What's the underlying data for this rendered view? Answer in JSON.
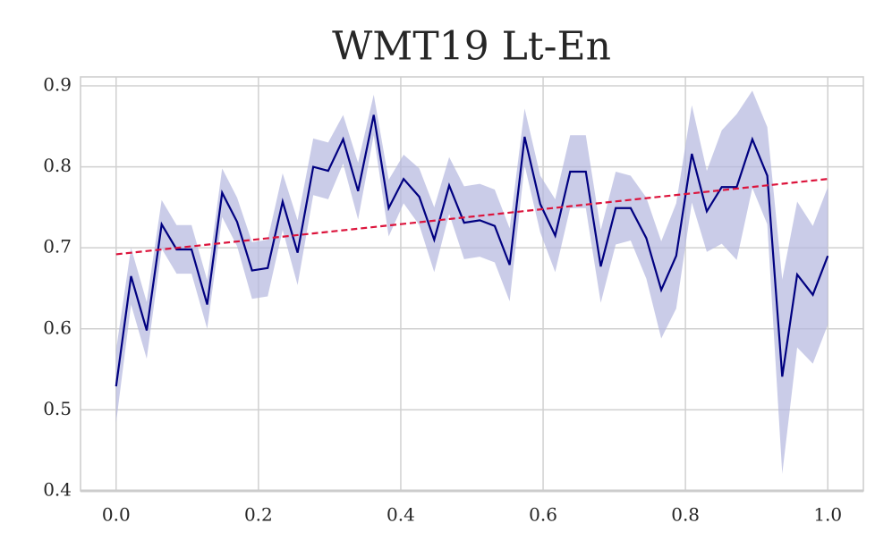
{
  "chart_data": {
    "type": "line",
    "title": "WMT19 Lt-En",
    "x": [
      0,
      0.021,
      0.043,
      0.064,
      0.085,
      0.106,
      0.128,
      0.149,
      0.17,
      0.191,
      0.213,
      0.234,
      0.255,
      0.277,
      0.298,
      0.319,
      0.34,
      0.362,
      0.383,
      0.404,
      0.426,
      0.447,
      0.468,
      0.489,
      0.511,
      0.532,
      0.553,
      0.574,
      0.596,
      0.617,
      0.638,
      0.66,
      0.681,
      0.702,
      0.723,
      0.745,
      0.766,
      0.787,
      0.809,
      0.83,
      0.851,
      0.872,
      0.894,
      0.915,
      0.936,
      0.957,
      0.979,
      1.0
    ],
    "series": [
      {
        "color": "#000080",
        "band_color": "#b3b6de",
        "values": [
          0.529,
          0.665,
          0.598,
          0.729,
          0.698,
          0.698,
          0.63,
          0.768,
          0.732,
          0.672,
          0.675,
          0.757,
          0.694,
          0.8,
          0.795,
          0.834,
          0.77,
          0.864,
          0.749,
          0.785,
          0.763,
          0.71,
          0.777,
          0.731,
          0.734,
          0.727,
          0.679,
          0.837,
          0.754,
          0.715,
          0.794,
          0.794,
          0.677,
          0.749,
          0.749,
          0.712,
          0.648,
          0.69,
          0.816,
          0.745,
          0.775,
          0.775,
          0.834,
          0.789,
          0.541,
          0.667,
          0.642,
          0.69
        ],
        "lower": [
          0.484,
          0.63,
          0.563,
          0.699,
          0.668,
          0.668,
          0.6,
          0.738,
          0.702,
          0.637,
          0.64,
          0.722,
          0.654,
          0.765,
          0.76,
          0.804,
          0.735,
          0.839,
          0.714,
          0.755,
          0.728,
          0.67,
          0.742,
          0.686,
          0.689,
          0.682,
          0.634,
          0.802,
          0.719,
          0.67,
          0.749,
          0.749,
          0.632,
          0.704,
          0.709,
          0.662,
          0.588,
          0.625,
          0.756,
          0.695,
          0.705,
          0.685,
          0.774,
          0.729,
          0.421,
          0.577,
          0.557,
          0.605
        ],
        "upper": [
          0.574,
          0.7,
          0.633,
          0.759,
          0.728,
          0.728,
          0.66,
          0.798,
          0.762,
          0.707,
          0.71,
          0.792,
          0.734,
          0.835,
          0.83,
          0.864,
          0.805,
          0.889,
          0.784,
          0.815,
          0.798,
          0.75,
          0.812,
          0.776,
          0.779,
          0.772,
          0.724,
          0.872,
          0.789,
          0.76,
          0.839,
          0.839,
          0.722,
          0.794,
          0.789,
          0.762,
          0.708,
          0.755,
          0.876,
          0.795,
          0.845,
          0.865,
          0.894,
          0.849,
          0.661,
          0.757,
          0.727,
          0.775
        ]
      }
    ],
    "trend": {
      "x": [
        0,
        1
      ],
      "values": [
        0.692,
        0.785
      ],
      "color": "#dc143c",
      "dashed": true
    },
    "xlim": [
      -0.05,
      1.05
    ],
    "ylim": [
      0.4,
      0.911
    ],
    "xticks": [
      {
        "value": 0,
        "label": "0.0"
      },
      0.2,
      0.4,
      0.6,
      0.8,
      {
        "value": 1,
        "label": "1.0"
      }
    ],
    "yticks": [
      0.4,
      0.5,
      0.6,
      0.7,
      0.8,
      0.9
    ],
    "grid": true
  }
}
